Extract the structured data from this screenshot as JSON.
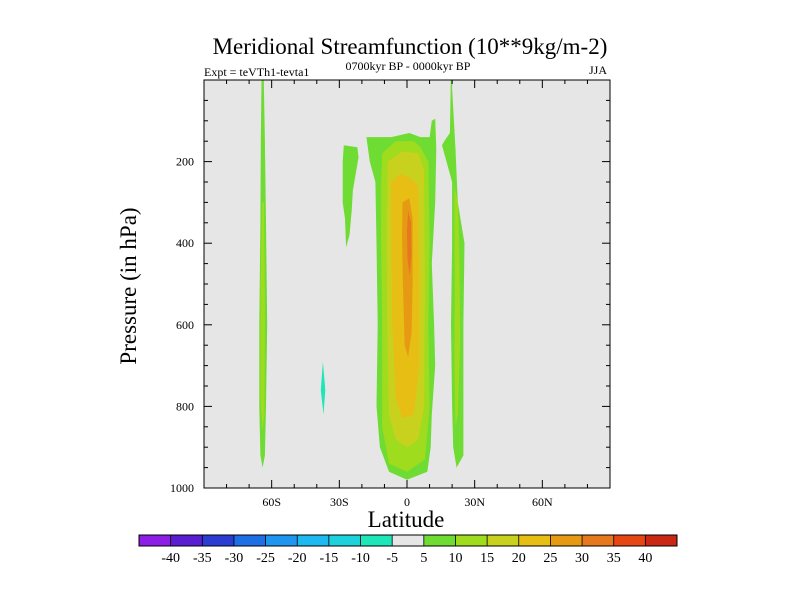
{
  "chart_data": {
    "type": "contour",
    "title": "Meridional Streamfunction (10**9kg/m-2)",
    "left_string": "Expt = teVTh1-tevta1",
    "center_string": "0700kyr BP - 0000kyr BP",
    "right_string": "JJA",
    "xlabel": "Latitude",
    "ylabel": "Pressure (in hPa)",
    "xlim": [
      -90,
      90
    ],
    "ylim": [
      1000,
      0
    ],
    "x_ticks": [
      {
        "value": -60,
        "label": "60S"
      },
      {
        "value": -30,
        "label": "30S"
      },
      {
        "value": 0,
        "label": "0"
      },
      {
        "value": 30,
        "label": "30N"
      },
      {
        "value": 60,
        "label": "60N"
      }
    ],
    "y_ticks": [
      {
        "value": 200,
        "label": "200"
      },
      {
        "value": 400,
        "label": "400"
      },
      {
        "value": 600,
        "label": "600"
      },
      {
        "value": 800,
        "label": "800"
      },
      {
        "value": 1000,
        "label": "1000"
      }
    ],
    "background_color": "#e6e6e6",
    "contour_levels": [
      {
        "label": "-40",
        "color": "#8c1ee6"
      },
      {
        "label": "-35",
        "color": "#5a1ed2"
      },
      {
        "label": "-30",
        "color": "#2a3cd2"
      },
      {
        "label": "-25",
        "color": "#1e6ee6"
      },
      {
        "label": "-20",
        "color": "#1e96f0"
      },
      {
        "label": "-15",
        "color": "#1eb9f0"
      },
      {
        "label": "-10",
        "color": "#1ed2dc"
      },
      {
        "label": "-5",
        "color": "#1ee6b9"
      },
      {
        "label": "5",
        "color": "#e6e6e6"
      },
      {
        "label": "10",
        "color": "#6edc32"
      },
      {
        "label": "15",
        "color": "#a0dc1e"
      },
      {
        "label": "20",
        "color": "#c8d21e"
      },
      {
        "label": "25",
        "color": "#e6be14"
      },
      {
        "label": "30",
        "color": "#e69a14"
      },
      {
        "label": "35",
        "color": "#e6781e"
      },
      {
        "label": "40",
        "color": "#e64614"
      },
      {
        "label": "",
        "color": "#c82814"
      }
    ],
    "regions": [
      {
        "name": "sh-polar-cell",
        "value": 10,
        "color": "#6edc32",
        "points": [
          [
            -64.5,
            0
          ],
          [
            -63.5,
            0
          ],
          [
            -63,
            150
          ],
          [
            -62.5,
            350
          ],
          [
            -62,
            600
          ],
          [
            -62.5,
            800
          ],
          [
            -63,
            920
          ],
          [
            -64,
            950
          ],
          [
            -65,
            920
          ],
          [
            -65.5,
            800
          ],
          [
            -65.5,
            600
          ],
          [
            -65,
            350
          ],
          [
            -64.8,
            150
          ]
        ]
      },
      {
        "name": "sh-polar-core",
        "value": 15,
        "color": "#a0dc1e",
        "points": [
          [
            -64.3,
            300
          ],
          [
            -63.4,
            300
          ],
          [
            -63,
            550
          ],
          [
            -63.2,
            820
          ],
          [
            -64.2,
            860
          ],
          [
            -65,
            780
          ],
          [
            -64.9,
            500
          ]
        ]
      },
      {
        "name": "sh-negative-patch",
        "value": -5,
        "color": "#1ee6b9",
        "points": [
          [
            -37.3,
            690
          ],
          [
            -36.2,
            760
          ],
          [
            -37,
            820
          ],
          [
            -38.2,
            760
          ]
        ]
      },
      {
        "name": "sh-upper-lobe",
        "value": 10,
        "color": "#6edc32",
        "points": [
          [
            -28,
            160
          ],
          [
            -22,
            165
          ],
          [
            -21.5,
            190
          ],
          [
            -24,
            270
          ],
          [
            -24.5,
            320
          ],
          [
            -25.5,
            380
          ],
          [
            -27,
            410
          ],
          [
            -27.5,
            340
          ],
          [
            -28.5,
            300
          ],
          [
            -28.5,
            200
          ]
        ]
      },
      {
        "name": "hadley-cell-outer",
        "value": 10,
        "color": "#6edc32",
        "points": [
          [
            -18,
            140
          ],
          [
            -7,
            140
          ],
          [
            1,
            130
          ],
          [
            6,
            140
          ],
          [
            10,
            140
          ],
          [
            11,
            100
          ],
          [
            12.5,
            95
          ],
          [
            13,
            170
          ],
          [
            12.5,
            300
          ],
          [
            11,
            450
          ],
          [
            12,
            600
          ],
          [
            12.5,
            700
          ],
          [
            11,
            820
          ],
          [
            10.5,
            900
          ],
          [
            9,
            960
          ],
          [
            0,
            980
          ],
          [
            -8,
            960
          ],
          [
            -12,
            900
          ],
          [
            -13.5,
            800
          ],
          [
            -13,
            600
          ],
          [
            -13.5,
            400
          ],
          [
            -14,
            250
          ],
          [
            -16.5,
            200
          ]
        ]
      },
      {
        "name": "hadley-cell-20",
        "value": 15,
        "color": "#a0dc1e",
        "points": [
          [
            -11,
            180
          ],
          [
            -5,
            150
          ],
          [
            3,
            150
          ],
          [
            6,
            165
          ],
          [
            9.5,
            200
          ],
          [
            10,
            400
          ],
          [
            9.5,
            600
          ],
          [
            10,
            800
          ],
          [
            8,
            930
          ],
          [
            0,
            960
          ],
          [
            -8,
            940
          ],
          [
            -11,
            850
          ],
          [
            -11,
            600
          ],
          [
            -11.5,
            400
          ],
          [
            -11.5,
            260
          ]
        ]
      },
      {
        "name": "hadley-cell-25",
        "value": 20,
        "color": "#c8d21e",
        "points": [
          [
            -8.5,
            200
          ],
          [
            -2,
            175
          ],
          [
            5,
            180
          ],
          [
            7.5,
            220
          ],
          [
            8,
            500
          ],
          [
            7.5,
            800
          ],
          [
            5,
            880
          ],
          [
            0,
            900
          ],
          [
            -5,
            880
          ],
          [
            -8,
            820
          ],
          [
            -8.8,
            600
          ],
          [
            -9,
            400
          ]
        ]
      },
      {
        "name": "hadley-cell-30",
        "value": 25,
        "color": "#e6be14",
        "points": [
          [
            -7,
            250
          ],
          [
            -3,
            230
          ],
          [
            1.5,
            240
          ],
          [
            5,
            260
          ],
          [
            5.5,
            500
          ],
          [
            5.5,
            700
          ],
          [
            3,
            820
          ],
          [
            -2,
            830
          ],
          [
            -5,
            780
          ],
          [
            -6.5,
            600
          ],
          [
            -7,
            400
          ]
        ]
      },
      {
        "name": "hadley-cell-35",
        "value": 30,
        "color": "#e69a14",
        "points": [
          [
            -2,
            300
          ],
          [
            1,
            290
          ],
          [
            2.5,
            340
          ],
          [
            2.5,
            500
          ],
          [
            2,
            620
          ],
          [
            0.5,
            680
          ],
          [
            -1,
            650
          ],
          [
            -1.8,
            500
          ],
          [
            -2.2,
            380
          ]
        ]
      },
      {
        "name": "hadley-cell-core",
        "value": 35,
        "color": "#e6781e",
        "points": [
          [
            0.5,
            320
          ],
          [
            1.8,
            350
          ],
          [
            2,
            430
          ],
          [
            1.2,
            480
          ],
          [
            0.2,
            440
          ],
          [
            0,
            370
          ]
        ]
      },
      {
        "name": "nh-ferrel-cell",
        "value": 10,
        "color": "#6edc32",
        "points": [
          [
            19.4,
            0
          ],
          [
            20.1,
            0
          ],
          [
            20,
            20
          ],
          [
            21.5,
            170
          ],
          [
            22.5,
            300
          ],
          [
            25.5,
            400
          ],
          [
            25,
            600
          ],
          [
            25,
            800
          ],
          [
            25,
            920
          ],
          [
            22,
            950
          ],
          [
            20.5,
            900
          ],
          [
            20,
            800
          ],
          [
            19.5,
            600
          ],
          [
            20,
            400
          ],
          [
            20,
            250
          ],
          [
            16.5,
            180
          ],
          [
            15.5,
            160
          ],
          [
            16.5,
            150
          ],
          [
            19,
            130
          ]
        ]
      },
      {
        "name": "nh-ferrel-core",
        "value": 15,
        "color": "#a0dc1e",
        "points": [
          [
            21,
            260
          ],
          [
            22.5,
            300
          ],
          [
            23.3,
            450
          ],
          [
            23.5,
            650
          ],
          [
            22.5,
            820
          ],
          [
            21.5,
            850
          ],
          [
            21,
            700
          ],
          [
            21.2,
            500
          ],
          [
            21,
            350
          ]
        ]
      }
    ]
  }
}
